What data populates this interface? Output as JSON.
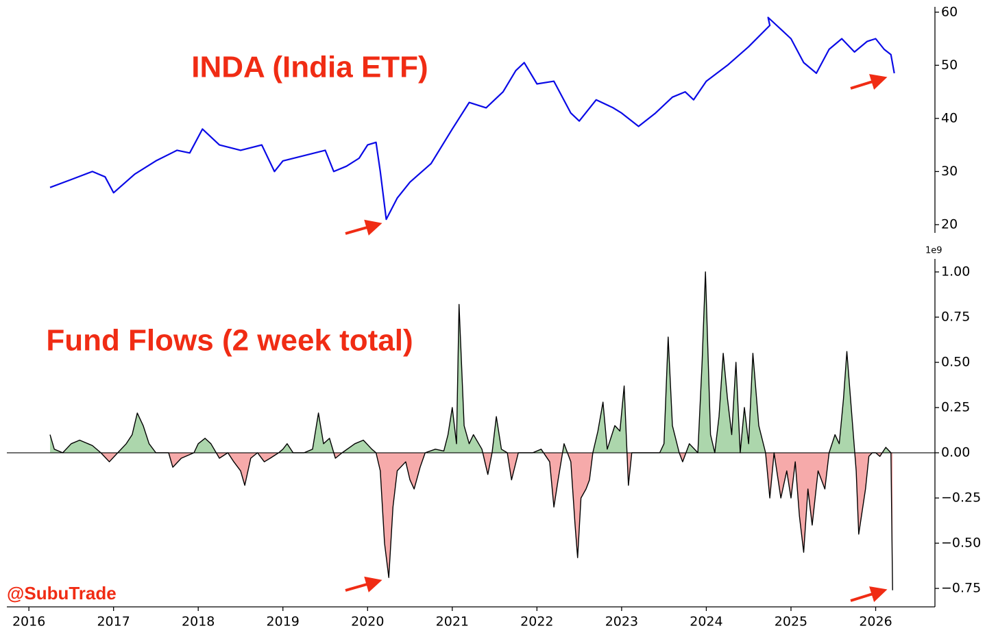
{
  "chart_data": [
    {
      "type": "line",
      "title": "INDA (India ETF)",
      "color": "#0a0ae6",
      "xlim": [
        2015.74,
        2026.7
      ],
      "ylim": [
        18.45,
        61.0
      ],
      "yticks": [
        20,
        30,
        40,
        50,
        60
      ],
      "x": [
        2016.25,
        2016.5,
        2016.75,
        2016.9,
        2017.0,
        2017.25,
        2017.5,
        2017.75,
        2017.9,
        2018.05,
        2018.25,
        2018.5,
        2018.75,
        2018.9,
        2019.0,
        2019.25,
        2019.5,
        2019.6,
        2019.75,
        2019.9,
        2020.0,
        2020.1,
        2020.15,
        2020.22,
        2020.35,
        2020.5,
        2020.75,
        2021.0,
        2021.2,
        2021.4,
        2021.6,
        2021.75,
        2021.85,
        2022.0,
        2022.2,
        2022.4,
        2022.5,
        2022.7,
        2022.9,
        2023.0,
        2023.2,
        2023.4,
        2023.6,
        2023.75,
        2023.85,
        2024.0,
        2024.25,
        2024.5,
        2024.75,
        2024.73,
        2024.9,
        2025.0,
        2025.15,
        2025.3,
        2025.45,
        2025.6,
        2025.75,
        2025.9,
        2026.0,
        2026.1,
        2026.18,
        2026.22
      ],
      "values": [
        27,
        28.5,
        30,
        29,
        26,
        29.5,
        32,
        34,
        33.5,
        38,
        35,
        34,
        35,
        30,
        32,
        33,
        34,
        30,
        31,
        32.5,
        35,
        35.5,
        30,
        21,
        25,
        28,
        31.5,
        38,
        43,
        42,
        45,
        49,
        50.5,
        46.5,
        47,
        41,
        39.5,
        43.5,
        42,
        41,
        38.5,
        41,
        44,
        45,
        43.5,
        47,
        50,
        53.5,
        57.5,
        59,
        56.5,
        55,
        50.5,
        48.5,
        53,
        55,
        52.5,
        54.5,
        55,
        53,
        52,
        48.5
      ]
    },
    {
      "type": "area",
      "title": "Fund Flows (2 week total)",
      "annotation": "@SubuTrade",
      "y_offset_label": "1e9",
      "color": "#000000",
      "pos_color": "#acd6ac",
      "neg_color": "#f6aaaa",
      "xlim": [
        2015.74,
        2026.7
      ],
      "ylim": [
        -0.852,
        1.072
      ],
      "xticks": [
        2016,
        2017,
        2018,
        2019,
        2020,
        2021,
        2022,
        2023,
        2024,
        2025,
        2026
      ],
      "yticks": [
        {
          "value": -0.75,
          "label": "−0.75"
        },
        {
          "value": -0.5,
          "label": "−0.50"
        },
        {
          "value": -0.25,
          "label": "−0.25"
        },
        {
          "value": 0,
          "label": "0.00"
        },
        {
          "value": 0.25,
          "label": "0.25"
        },
        {
          "value": 0.5,
          "label": "0.50"
        },
        {
          "value": 0.75,
          "label": "0.75"
        },
        {
          "value": 1,
          "label": "1.00"
        }
      ],
      "x": [
        2016.25,
        2016.3,
        2016.4,
        2016.5,
        2016.6,
        2016.75,
        2016.85,
        2016.95,
        2017.05,
        2017.15,
        2017.22,
        2017.28,
        2017.35,
        2017.42,
        2017.5,
        2017.65,
        2017.7,
        2017.8,
        2017.95,
        2018.0,
        2018.08,
        2018.15,
        2018.25,
        2018.35,
        2018.42,
        2018.5,
        2018.55,
        2018.62,
        2018.7,
        2018.78,
        2018.85,
        2018.95,
        2019.0,
        2019.05,
        2019.12,
        2019.25,
        2019.35,
        2019.42,
        2019.48,
        2019.55,
        2019.62,
        2019.7,
        2019.85,
        2019.95,
        2020.05,
        2020.1,
        2020.15,
        2020.2,
        2020.25,
        2020.3,
        2020.35,
        2020.45,
        2020.5,
        2020.55,
        2020.62,
        2020.68,
        2020.8,
        2020.9,
        2020.95,
        2021.0,
        2021.05,
        2021.08,
        2021.14,
        2021.2,
        2021.25,
        2021.35,
        2021.42,
        2021.47,
        2021.52,
        2021.58,
        2021.65,
        2021.7,
        2021.78,
        2021.95,
        2022.05,
        2022.15,
        2022.2,
        2022.25,
        2022.32,
        2022.4,
        2022.45,
        2022.48,
        2022.52,
        2022.58,
        2022.62,
        2022.66,
        2022.72,
        2022.78,
        2022.83,
        2022.92,
        2022.98,
        2023.03,
        2023.08,
        2023.12,
        2023.45,
        2023.5,
        2023.55,
        2023.6,
        2023.68,
        2023.72,
        2023.8,
        2023.9,
        2023.95,
        2023.99,
        2024.05,
        2024.1,
        2024.15,
        2024.2,
        2024.25,
        2024.3,
        2024.35,
        2024.4,
        2024.45,
        2024.5,
        2024.55,
        2024.62,
        2024.7,
        2024.75,
        2024.8,
        2024.88,
        2024.95,
        2025.0,
        2025.05,
        2025.1,
        2025.15,
        2025.2,
        2025.25,
        2025.32,
        2025.4,
        2025.45,
        2025.52,
        2025.57,
        2025.62,
        2025.66,
        2025.72,
        2025.77,
        2025.8,
        2025.88,
        2025.92,
        2025.96,
        2026.0,
        2026.05,
        2026.12,
        2026.18,
        2026.2
      ],
      "values": [
        0.1,
        0.02,
        0.0,
        0.05,
        0.07,
        0.04,
        0.0,
        -0.05,
        0.0,
        0.05,
        0.1,
        0.22,
        0.15,
        0.05,
        0.0,
        0.0,
        -0.08,
        -0.03,
        0.0,
        0.05,
        0.08,
        0.05,
        -0.03,
        0.0,
        -0.05,
        -0.1,
        -0.18,
        -0.03,
        0.0,
        -0.05,
        -0.03,
        0.0,
        0.02,
        0.05,
        0.0,
        0.0,
        0.02,
        0.22,
        0.05,
        0.08,
        -0.03,
        0.0,
        0.05,
        0.07,
        0.02,
        0.0,
        -0.1,
        -0.5,
        -0.69,
        -0.3,
        -0.1,
        -0.05,
        -0.15,
        -0.2,
        -0.08,
        0.0,
        0.02,
        0.01,
        0.1,
        0.25,
        0.05,
        0.82,
        0.15,
        0.05,
        0.1,
        0.02,
        -0.12,
        0.0,
        0.2,
        0.02,
        0.0,
        -0.15,
        0.0,
        0.0,
        0.02,
        -0.05,
        -0.3,
        -0.15,
        0.05,
        -0.05,
        -0.4,
        -0.58,
        -0.25,
        -0.2,
        -0.15,
        0.0,
        0.12,
        0.28,
        0.02,
        0.15,
        0.12,
        0.37,
        -0.18,
        0.0,
        0.0,
        0.05,
        0.64,
        0.15,
        0.0,
        -0.05,
        0.05,
        0.0,
        0.5,
        1.0,
        0.1,
        0.0,
        0.2,
        0.55,
        0.3,
        0.1,
        0.5,
        0.0,
        0.25,
        0.05,
        0.55,
        0.15,
        0.0,
        -0.25,
        0.0,
        -0.25,
        -0.1,
        -0.25,
        -0.05,
        -0.35,
        -0.55,
        -0.2,
        -0.4,
        -0.1,
        -0.2,
        0.0,
        0.1,
        0.05,
        0.3,
        0.56,
        0.2,
        -0.1,
        -0.45,
        -0.2,
        -0.02,
        0.0,
        0.0,
        -0.02,
        0.03,
        0.0,
        -0.76
      ]
    }
  ]
}
